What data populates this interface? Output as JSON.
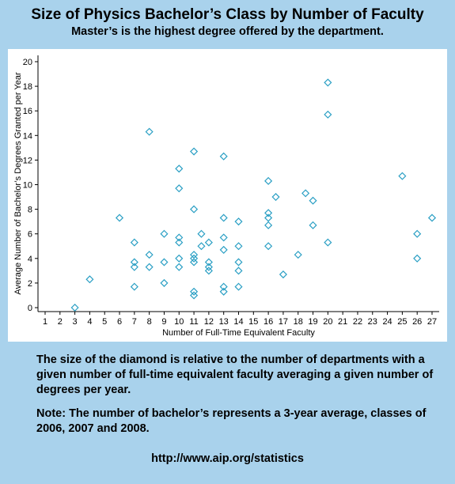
{
  "header": {
    "title": "Size of Physics Bachelor’s Class by Number of Faculty",
    "subtitle": "Master’s is the highest degree offered by the department."
  },
  "notes": {
    "size_note": "The size of the diamond is relative to the number of departments with a given number of full-time equivalent faculty averaging a given number of degrees per year.",
    "average_note": "Note: The number of bachelor’s represents a 3-year average, classes of 2006, 2007 and 2008."
  },
  "footer": {
    "url": "http://www.aip.org/statistics"
  },
  "colors": {
    "background": "#a9d2ec",
    "panel": "#ffffff",
    "marker": "#2a9fc4"
  },
  "chart_data": {
    "type": "scatter",
    "marker": "diamond",
    "title": "",
    "xlabel": "Number of Full-Time Equivalent Faculty",
    "ylabel": "Average Number of Bachelor’s Degrees Granted per Year",
    "xlim": [
      1,
      27
    ],
    "ylim": [
      0,
      20
    ],
    "x_ticks": [
      1,
      2,
      3,
      4,
      5,
      6,
      7,
      8,
      9,
      10,
      11,
      12,
      13,
      14,
      15,
      16,
      17,
      18,
      19,
      20,
      21,
      22,
      23,
      24,
      25,
      26,
      27
    ],
    "y_ticks": [
      0,
      2,
      4,
      6,
      8,
      10,
      12,
      14,
      16,
      18,
      20
    ],
    "grid": false,
    "points": [
      {
        "x": 3,
        "y": 0
      },
      {
        "x": 4,
        "y": 2.3
      },
      {
        "x": 6,
        "y": 7.3
      },
      {
        "x": 7,
        "y": 5.3
      },
      {
        "x": 7,
        "y": 3.7
      },
      {
        "x": 7,
        "y": 3.3
      },
      {
        "x": 7,
        "y": 1.7
      },
      {
        "x": 8,
        "y": 14.3
      },
      {
        "x": 8,
        "y": 4.3
      },
      {
        "x": 8,
        "y": 3.3
      },
      {
        "x": 9,
        "y": 6.0
      },
      {
        "x": 9,
        "y": 3.7
      },
      {
        "x": 9,
        "y": 2.0
      },
      {
        "x": 10,
        "y": 11.3
      },
      {
        "x": 10,
        "y": 9.7
      },
      {
        "x": 10,
        "y": 5.7
      },
      {
        "x": 10,
        "y": 5.3
      },
      {
        "x": 10,
        "y": 4.0
      },
      {
        "x": 10,
        "y": 3.3
      },
      {
        "x": 11,
        "y": 12.7
      },
      {
        "x": 11,
        "y": 8.0
      },
      {
        "x": 11,
        "y": 4.3
      },
      {
        "x": 11,
        "y": 4.0
      },
      {
        "x": 11,
        "y": 3.7
      },
      {
        "x": 11,
        "y": 1.3
      },
      {
        "x": 11,
        "y": 1.0
      },
      {
        "x": 11.5,
        "y": 6.0
      },
      {
        "x": 11.5,
        "y": 5.0
      },
      {
        "x": 12,
        "y": 5.3
      },
      {
        "x": 12,
        "y": 3.7
      },
      {
        "x": 12,
        "y": 3.3
      },
      {
        "x": 12,
        "y": 3.0
      },
      {
        "x": 13,
        "y": 12.3
      },
      {
        "x": 13,
        "y": 7.3
      },
      {
        "x": 13,
        "y": 5.7
      },
      {
        "x": 13,
        "y": 4.7
      },
      {
        "x": 13,
        "y": 1.7
      },
      {
        "x": 13,
        "y": 1.3
      },
      {
        "x": 14,
        "y": 7.0
      },
      {
        "x": 14,
        "y": 5.0
      },
      {
        "x": 14,
        "y": 3.7
      },
      {
        "x": 14,
        "y": 3.0
      },
      {
        "x": 14,
        "y": 1.7
      },
      {
        "x": 16,
        "y": 10.3
      },
      {
        "x": 16,
        "y": 7.7
      },
      {
        "x": 16,
        "y": 7.3
      },
      {
        "x": 16,
        "y": 6.7
      },
      {
        "x": 16,
        "y": 5.0
      },
      {
        "x": 16.5,
        "y": 9.0
      },
      {
        "x": 17,
        "y": 2.7
      },
      {
        "x": 18,
        "y": 4.3
      },
      {
        "x": 18.5,
        "y": 9.3
      },
      {
        "x": 19,
        "y": 8.7
      },
      {
        "x": 19,
        "y": 6.7
      },
      {
        "x": 20,
        "y": 18.3
      },
      {
        "x": 20,
        "y": 15.7
      },
      {
        "x": 20,
        "y": 5.3
      },
      {
        "x": 25,
        "y": 10.7
      },
      {
        "x": 26,
        "y": 6.0
      },
      {
        "x": 26,
        "y": 4.0
      },
      {
        "x": 27,
        "y": 7.3
      }
    ]
  }
}
